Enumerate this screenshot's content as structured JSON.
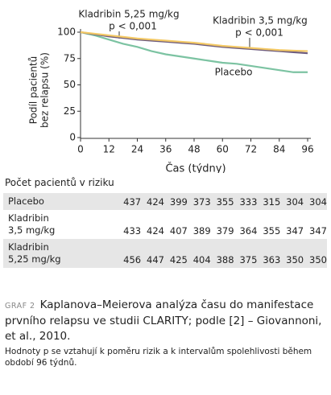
{
  "chart_data": {
    "type": "line",
    "y_label_lines": [
      "Podíl pacientů",
      "bez relapsu (%)"
    ],
    "x_label": "Čas (týdny)",
    "annotations": [
      "p < 0,001",
      "p < 0,001"
    ],
    "x": [
      0,
      6,
      12,
      18,
      24,
      30,
      36,
      42,
      48,
      54,
      60,
      66,
      72,
      78,
      84,
      90,
      96
    ],
    "series": [
      {
        "name": "Kladribin 5,25 mg/kg",
        "color": "#f3c864",
        "values": [
          100,
          98.5,
          97,
          95.5,
          94,
          93,
          92,
          91,
          90,
          88.5,
          87,
          86,
          85,
          84,
          83,
          82.5,
          82
        ]
      },
      {
        "name": "Kladribin 3,5 mg/kg",
        "color": "#6e5c7e",
        "values": [
          100,
          98,
          96,
          94.5,
          93,
          92,
          91,
          90,
          89,
          87.5,
          86,
          85,
          84,
          83,
          82,
          81,
          80
        ]
      },
      {
        "name": "Placebo",
        "color": "#7cc3a2",
        "values": [
          100,
          97,
          93,
          89,
          86,
          82,
          79,
          77,
          75,
          73,
          71,
          70,
          68,
          66,
          64,
          62,
          62
        ]
      }
    ],
    "xlim": [
      0,
      96
    ],
    "xticks": [
      0,
      12,
      24,
      36,
      48,
      60,
      72,
      84,
      96
    ],
    "ylim": [
      0,
      100
    ],
    "yticks": [
      0,
      25,
      50,
      75,
      100
    ]
  },
  "risk_table": {
    "title": "Počet pacientů v riziku",
    "rows": [
      [
        "Placebo",
        "437",
        "424",
        "399",
        "373",
        "355",
        "333",
        "315",
        "304",
        "304"
      ],
      [
        "Kladribin\n3,5 mg/kg",
        "433",
        "424",
        "407",
        "389",
        "379",
        "364",
        "355",
        "347",
        "347"
      ],
      [
        "Kladribin\n5,25 mg/kg",
        "456",
        "447",
        "425",
        "404",
        "388",
        "375",
        "363",
        "350",
        "350"
      ]
    ]
  },
  "caption": {
    "label": "GRAF 2",
    "text": "Kaplanova–Meierova analýza času do manifestace prvního relapsu ve studii CLARITY; podle [2] – Giovannoni, et al., 2010.",
    "note": "Hodnoty p se vztahují k poměru rizik a k intervalům spolehlivosti během období 96 týdnů."
  }
}
